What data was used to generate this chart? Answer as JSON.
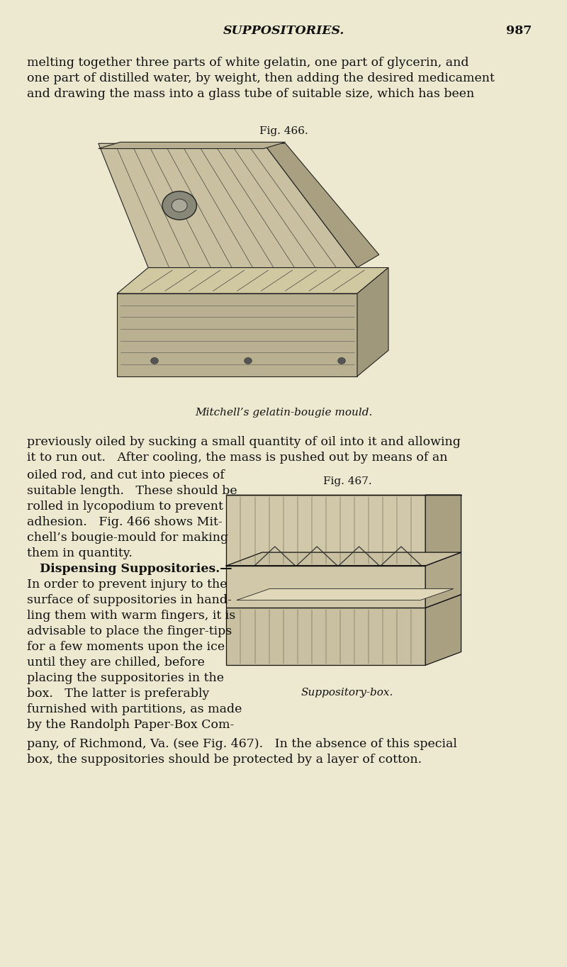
{
  "bg_color": "#ede8d0",
  "page_width": 8.0,
  "page_height": 13.64,
  "dpi": 100,
  "text_color": "#111111",
  "header_title": "SUPPOSITORIES.",
  "header_page": "987",
  "fig466_label": "Fig. 466.",
  "fig467_label": "Fig. 467.",
  "fig466_caption": "Mitchell’s gelatin-bougie mould.",
  "fig467_caption": "Suppository-box.",
  "top_lines": [
    "melting together three parts of white gelatin, one part of glycerin, and",
    "one part of distilled water, by weight, then adding the desired medicament",
    "and drawing the mass into a glass tube of suitable size, which has been"
  ],
  "mid_lines": [
    "previously oiled by sucking a small quantity of oil into it and allowing",
    "it to run out.   After cooling, the mass is pushed out by means of an"
  ],
  "left_col": [
    "oiled rod, and cut into pieces of",
    "suitable length.   These should be",
    "rolled in lycopodium to prevent",
    "adhesion.   Fig. 466 shows Mit-",
    "chell’s bougie-mould for making",
    "them in quantity.",
    "   Dispensing Suppositories.—",
    "In order to prevent injury to the",
    "surface of suppositories in hand-",
    "ling them with warm fingers, it is",
    "advisable to place the finger-tips",
    "for a few moments upon the ice",
    "until they are chilled, before",
    "placing the suppositories in the",
    "box.   The latter is preferably",
    "furnished with partitions, as made",
    "by the Randolph Paper-Box Com-"
  ],
  "bottom_lines": [
    "pany, of Richmond, Va. (see Fig. 467).   In the absence of this special",
    "box, the suppositories should be protected by a layer of cotton."
  ],
  "body_fs": 12.5,
  "caption_fs": 11.0,
  "header_fs": 12.5
}
